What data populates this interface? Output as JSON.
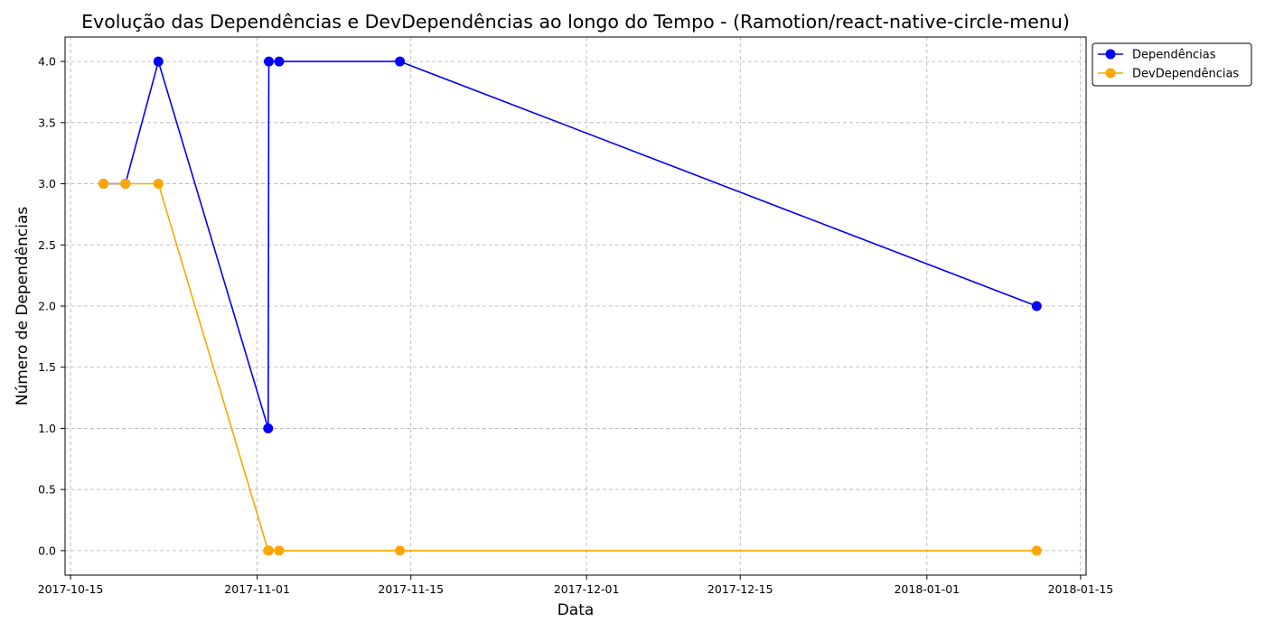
{
  "chart_data": {
    "type": "line",
    "title": "Evolução das Dependências e DevDependências ao longo do Tempo - (Ramotion/react-native-circle-menu)",
    "xlabel": "Data",
    "ylabel": "Número de Dependências",
    "x_type": "date",
    "xlim": [
      "2017-10-14T12:00",
      "2018-01-15T12:00"
    ],
    "ylim": [
      -0.2,
      4.2
    ],
    "x_ticks": [
      "2017-10-15",
      "2017-11-01",
      "2017-11-15",
      "2017-12-01",
      "2017-12-15",
      "2018-01-01",
      "2018-01-15"
    ],
    "y_ticks": [
      "0.0",
      "0.5",
      "1.0",
      "1.5",
      "2.0",
      "2.5",
      "3.0",
      "3.5",
      "4.0"
    ],
    "grid": true,
    "legend_position": "upper-right-outside",
    "series": [
      {
        "name": "Dependências",
        "color": "#0000ff",
        "marker": "circle",
        "x": [
          "2017-10-18",
          "2017-10-20",
          "2017-10-23",
          "2017-11-02",
          "2017-11-02T01:30",
          "2017-11-03",
          "2017-11-14",
          "2018-01-11"
        ],
        "values": [
          3,
          3,
          4,
          1,
          4,
          4,
          4,
          2
        ]
      },
      {
        "name": "DevDependências",
        "color": "#ffa500",
        "marker": "circle",
        "x": [
          "2017-10-18",
          "2017-10-20",
          "2017-10-23",
          "2017-11-02",
          "2017-11-02T01:30",
          "2017-11-03",
          "2017-11-14",
          "2018-01-11"
        ],
        "values": [
          3,
          3,
          3,
          0,
          0,
          0,
          0,
          0
        ]
      }
    ]
  }
}
